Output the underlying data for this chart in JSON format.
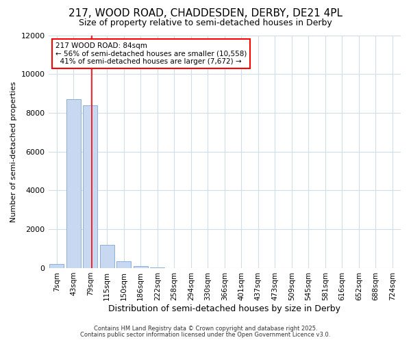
{
  "title": "217, WOOD ROAD, CHADDESDEN, DERBY, DE21 4PL",
  "subtitle": "Size of property relative to semi-detached houses in Derby",
  "xlabel": "Distribution of semi-detached houses by size in Derby",
  "ylabel": "Number of semi-detached properties",
  "bar_labels": [
    "7sqm",
    "43sqm",
    "79sqm",
    "115sqm",
    "150sqm",
    "186sqm",
    "222sqm",
    "258sqm",
    "294sqm",
    "330sqm",
    "366sqm",
    "401sqm",
    "437sqm",
    "473sqm",
    "509sqm",
    "545sqm",
    "581sqm",
    "616sqm",
    "652sqm",
    "688sqm",
    "724sqm"
  ],
  "bar_values": [
    200,
    8700,
    8400,
    1200,
    350,
    100,
    50,
    5,
    0,
    0,
    0,
    0,
    0,
    0,
    0,
    0,
    0,
    0,
    0,
    0,
    0
  ],
  "bar_color": "#c8d8f0",
  "bar_edge_color": "#8ab0d8",
  "ylim": [
    0,
    12000
  ],
  "yticks": [
    0,
    2000,
    4000,
    6000,
    8000,
    10000,
    12000
  ],
  "property_label": "217 WOOD ROAD: 84sqm",
  "pct_smaller": 56,
  "count_smaller": 10558,
  "pct_larger": 41,
  "count_larger": 7672,
  "vline_x": 2.1,
  "bg_color": "#ffffff",
  "grid_color": "#d0dce8",
  "footer1": "Contains HM Land Registry data © Crown copyright and database right 2025.",
  "footer2": "Contains public sector information licensed under the Open Government Licence v3.0."
}
